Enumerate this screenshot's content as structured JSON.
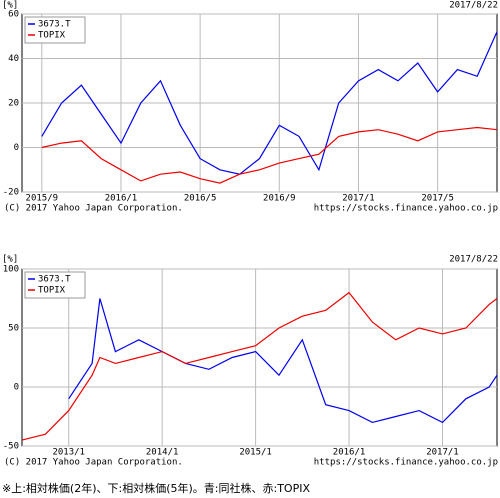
{
  "chart_data": [
    {
      "type": "line",
      "y_label": "[%]",
      "date_label": "2017/8/22",
      "copyright": "(C) 2017 Yahoo Japan Corporation.",
      "source": "https://stocks.finance.yahoo.co.jp",
      "x": [
        "2015/9",
        "2015/10",
        "2015/11",
        "2015/12",
        "2016/1",
        "2016/2",
        "2016/3",
        "2016/4",
        "2016/5",
        "2016/6",
        "2016/7",
        "2016/8",
        "2016/9",
        "2016/10",
        "2016/11",
        "2016/12",
        "2017/1",
        "2017/2",
        "2017/3",
        "2017/4",
        "2017/5",
        "2017/6",
        "2017/7",
        "2017/8"
      ],
      "xlim": [
        "2015/8",
        "2017/8"
      ],
      "xticks": [
        "2015/9",
        "2016/1",
        "2016/5",
        "2016/9",
        "2017/1",
        "2017/5"
      ],
      "ylim": [
        -20,
        60
      ],
      "yticks": [
        -20,
        0,
        20,
        40,
        60
      ],
      "grid": true,
      "legend": "top-left",
      "series": [
        {
          "name": "3673.T",
          "color": "#0000ee",
          "values": [
            5,
            20,
            28,
            15,
            2,
            20,
            30,
            10,
            -5,
            -10,
            -12,
            -5,
            10,
            5,
            -10,
            20,
            30,
            35,
            30,
            38,
            25,
            35,
            32,
            52
          ]
        },
        {
          "name": "TOPIX",
          "color": "#ee0000",
          "values": [
            0,
            2,
            3,
            -5,
            -10,
            -15,
            -12,
            -11,
            -14,
            -16,
            -12,
            -10,
            -7,
            -5,
            -3,
            5,
            7,
            8,
            6,
            3,
            7,
            8,
            9,
            8
          ]
        }
      ]
    },
    {
      "type": "line",
      "y_label": "[%]",
      "date_label": "2017/8/22",
      "copyright": "(C) 2017 Yahoo Japan Corporation.",
      "source": "https://stocks.finance.yahoo.co.jp",
      "x": [
        "2012/7",
        "2012/10",
        "2013/1",
        "2013/4",
        "2013/5",
        "2013/7",
        "2013/10",
        "2014/1",
        "2014/4",
        "2014/7",
        "2014/10",
        "2015/1",
        "2015/4",
        "2015/7",
        "2015/10",
        "2016/1",
        "2016/4",
        "2016/7",
        "2016/10",
        "2017/1",
        "2017/4",
        "2017/7",
        "2017/8"
      ],
      "xlim": [
        "2012/7",
        "2017/8"
      ],
      "xticks": [
        "2013/1",
        "2014/1",
        "2015/1",
        "2016/1",
        "2017/1"
      ],
      "ylim": [
        -50,
        100
      ],
      "yticks": [
        -50,
        0,
        50,
        100
      ],
      "grid": true,
      "legend": "top-left",
      "series": [
        {
          "name": "3673.T",
          "color": "#0000ee",
          "values": [
            null,
            null,
            -10,
            20,
            75,
            30,
            40,
            30,
            20,
            15,
            25,
            30,
            10,
            40,
            -15,
            -20,
            -30,
            -25,
            -20,
            -30,
            -10,
            0,
            10
          ]
        },
        {
          "name": "TOPIX",
          "color": "#ee0000",
          "values": [
            -45,
            -40,
            -20,
            10,
            25,
            20,
            25,
            30,
            20,
            25,
            30,
            35,
            50,
            60,
            65,
            80,
            55,
            40,
            50,
            45,
            50,
            70,
            75
          ]
        }
      ]
    }
  ],
  "caption": "※上:相対株価(2年)、下:相対株価(5年)。青:同社株、赤:TOPIX"
}
